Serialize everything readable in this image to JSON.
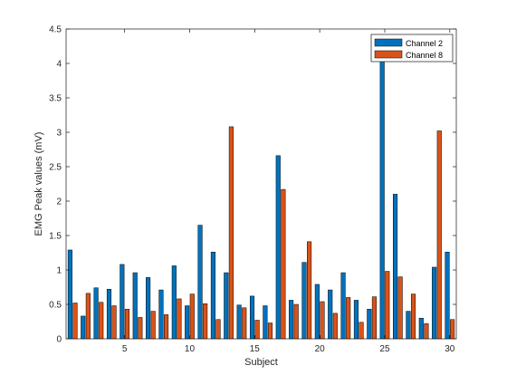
{
  "chart_data": {
    "type": "bar",
    "xlabel": "Subject",
    "ylabel": "EMG Peak values (mV)",
    "xlim": [
      0.5,
      30.5
    ],
    "ylim": [
      0,
      4.5
    ],
    "xticks": [
      5,
      10,
      15,
      20,
      25,
      30
    ],
    "xtick_labels": [
      "5",
      "10",
      "15",
      "20",
      "25",
      "30"
    ],
    "yticks": [
      0,
      0.5,
      1,
      1.5,
      2,
      2.5,
      3,
      3.5,
      4,
      4.5
    ],
    "ytick_labels": [
      "0",
      "0.5",
      "1",
      "1.5",
      "2",
      "2.5",
      "3",
      "3.5",
      "4",
      "4.5"
    ],
    "grid": false,
    "legend_position": "top-right",
    "x": [
      1,
      2,
      3,
      4,
      5,
      6,
      7,
      8,
      9,
      10,
      11,
      12,
      13,
      14,
      15,
      16,
      17,
      18,
      19,
      20,
      21,
      22,
      23,
      24,
      25,
      26,
      27,
      28,
      29,
      30
    ],
    "series": [
      {
        "name": "Channel 2",
        "color": "#0072BD",
        "values": [
          1.29,
          0.33,
          0.74,
          0.72,
          1.08,
          0.96,
          0.89,
          0.71,
          1.06,
          0.48,
          1.65,
          1.26,
          0.96,
          0.49,
          0.62,
          0.48,
          2.66,
          0.56,
          1.11,
          0.79,
          0.71,
          0.96,
          0.56,
          0.43,
          4.05,
          2.1,
          0.4,
          0.3,
          1.04,
          1.26
        ]
      },
      {
        "name": "Channel 8",
        "color": "#D95319",
        "values": [
          0.52,
          0.66,
          0.53,
          0.48,
          0.43,
          0.31,
          0.4,
          0.35,
          0.58,
          0.65,
          0.51,
          0.28,
          3.08,
          0.45,
          0.27,
          0.23,
          2.17,
          0.5,
          1.41,
          0.54,
          0.37,
          0.6,
          0.24,
          0.61,
          0.98,
          0.9,
          0.65,
          0.22,
          3.02,
          0.28
        ]
      }
    ]
  }
}
